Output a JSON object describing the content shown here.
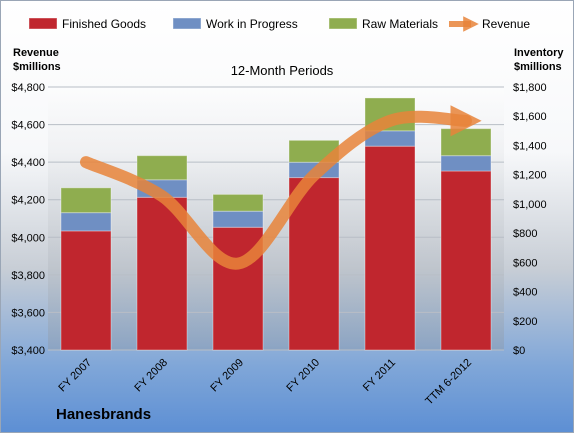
{
  "chart_data": {
    "type": "bar",
    "stacked": true,
    "title": "12-Month Periods",
    "company": "Hanesbrands",
    "categories": [
      "FY 2007",
      "FY 2008",
      "FY 2009",
      "FY 2010",
      "FY 2011",
      "TTM 6-2012"
    ],
    "series": [
      {
        "name": "Finished Goods",
        "color": "#c0262e",
        "axis": "right",
        "values": [
          815,
          1045,
          840,
          1180,
          1395,
          1225
        ]
      },
      {
        "name": "Work in Progress",
        "color": "#6f8fc3",
        "axis": "right",
        "values": [
          125,
          120,
          110,
          105,
          105,
          105
        ]
      },
      {
        "name": "Raw Materials",
        "color": "#8fad4f",
        "axis": "right",
        "values": [
          170,
          165,
          115,
          150,
          225,
          185
        ]
      }
    ],
    "line_series": {
      "name": "Revenue",
      "color": "#e8843a",
      "axis": "left",
      "values": [
        4400,
        4220,
        3860,
        4330,
        4620,
        4620
      ]
    },
    "left_axis": {
      "title_line1": "Revenue",
      "title_line2": "$millions",
      "min": 3400,
      "max": 4800,
      "step": 200,
      "ticks": [
        "$3,400",
        "$3,600",
        "$3,800",
        "$4,000",
        "$4,200",
        "$4,400",
        "$4,600",
        "$4,800"
      ]
    },
    "right_axis": {
      "title_line1": "Inventory",
      "title_line2": "$millions",
      "min": 0,
      "max": 1800,
      "step": 200,
      "ticks": [
        "$0",
        "$200",
        "$400",
        "$600",
        "$800",
        "$1,000",
        "$1,200",
        "$1,400",
        "$1,600",
        "$1,800"
      ]
    },
    "legend": [
      "Finished Goods",
      "Work in Progress",
      "Raw Materials",
      "Revenue"
    ],
    "legend_position": "top",
    "grid": true
  }
}
